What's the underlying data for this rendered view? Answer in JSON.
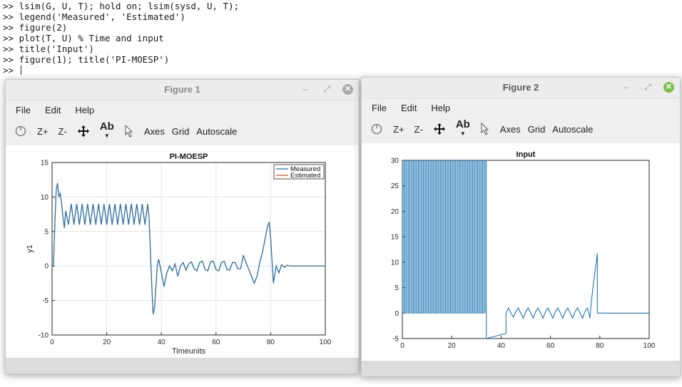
{
  "console": {
    "lines": [
      ">> lsim(G, U, T); hold on; lsim(sysd, U, T);",
      ">> legend('Measured', 'Estimated')",
      ">> figure(2)",
      ">> plot(T, U) % Time and input",
      ">> title('Input')",
      ">> figure(1); title('PI-MOESP')",
      ">> "
    ]
  },
  "figure1": {
    "window_title": "Figure 1",
    "menu": [
      "File",
      "Edit",
      "Help"
    ],
    "toolbar": {
      "zoom_in": "Z+",
      "zoom_out": "Z-",
      "text_tool": "Ab",
      "axes": "Axes",
      "grid": "Grid",
      "autoscale": "Autoscale"
    }
  },
  "figure2": {
    "window_title": "Figure 2",
    "menu": [
      "File",
      "Edit",
      "Help"
    ],
    "toolbar": {
      "zoom_in": "Z+",
      "zoom_out": "Z-",
      "text_tool": "Ab",
      "axes": "Axes",
      "grid": "Grid",
      "autoscale": "Autoscale"
    }
  },
  "chart_data": [
    {
      "type": "line",
      "title": "PI-MOESP",
      "xlabel": "Timeunits",
      "ylabel": "y1",
      "xlim": [
        0,
        100
      ],
      "ylim": [
        -10,
        15
      ],
      "xticks": [
        0,
        20,
        40,
        60,
        80,
        100
      ],
      "yticks": [
        -10,
        -5,
        0,
        5,
        10,
        15
      ],
      "grid": true,
      "legend_position": "top-right",
      "colors": {
        "Measured": "#1f77b4",
        "Estimated": "#d95319"
      },
      "series": [
        {
          "name": "Measured",
          "x": [
            0,
            0.5,
            1,
            1.5,
            2,
            2.5,
            3,
            3.5,
            4,
            4.5,
            5,
            6,
            7,
            8,
            9,
            10,
            11,
            12,
            13,
            14,
            15,
            16,
            17,
            18,
            19,
            20,
            21,
            22,
            23,
            24,
            25,
            26,
            27,
            28,
            29,
            30,
            31,
            32,
            33,
            34,
            35,
            35.5,
            36,
            36.5,
            37,
            37.5,
            38,
            38.5,
            39,
            40,
            41,
            42,
            43,
            44,
            45,
            46,
            47,
            48,
            49,
            50,
            51,
            52,
            53,
            54,
            55,
            56,
            57,
            58,
            59,
            60,
            61,
            62,
            63,
            64,
            65,
            66,
            67,
            68,
            69,
            70,
            71,
            72,
            73,
            74,
            75,
            76,
            77,
            78,
            79,
            79.5,
            80,
            81,
            82,
            83,
            84,
            85,
            86,
            87,
            88,
            90,
            95,
            100
          ],
          "y": [
            0,
            0,
            6,
            11,
            12,
            10,
            10.5,
            9,
            7,
            5.5,
            8,
            6,
            9,
            6,
            9,
            6,
            9,
            6,
            9,
            6,
            9,
            6,
            9,
            6,
            9,
            6,
            9,
            6,
            9,
            6,
            9,
            6,
            9,
            6,
            9,
            6,
            9,
            6,
            9,
            6,
            9,
            7,
            2,
            -3,
            -7,
            -6,
            -3,
            0,
            1,
            -1,
            -3,
            -1,
            0,
            -0.7,
            0.3,
            -1.5,
            0,
            0.5,
            -0.6,
            0.3,
            0.6,
            -0.4,
            -0.7,
            0.5,
            0.7,
            -0.5,
            -0.7,
            0.6,
            0.7,
            -0.5,
            -0.7,
            0.5,
            0.7,
            -0.5,
            -0.6,
            0.5,
            0.5,
            -0.4,
            -0.4,
            1.5,
            0.5,
            -0.5,
            -1.5,
            -2.5,
            -1.5,
            0.5,
            2,
            4,
            6,
            6.3,
            4,
            -2.5,
            0,
            -1,
            0.2,
            -0.2,
            0.1,
            0,
            0,
            0,
            0,
            0
          ]
        },
        {
          "name": "Estimated",
          "x": [
            0,
            0.5,
            1,
            1.5,
            2,
            2.5,
            3,
            3.5,
            4,
            4.5,
            5,
            6,
            7,
            8,
            9,
            10,
            11,
            12,
            13,
            14,
            15,
            16,
            17,
            18,
            19,
            20,
            21,
            22,
            23,
            24,
            25,
            26,
            27,
            28,
            29,
            30,
            31,
            32,
            33,
            34,
            35,
            35.5,
            36,
            36.5,
            37,
            37.5,
            38,
            38.5,
            39,
            40,
            41,
            42,
            43,
            44,
            45,
            46,
            47,
            48,
            49,
            50,
            51,
            52,
            53,
            54,
            55,
            56,
            57,
            58,
            59,
            60,
            61,
            62,
            63,
            64,
            65,
            66,
            67,
            68,
            69,
            70,
            71,
            72,
            73,
            74,
            75,
            76,
            77,
            78,
            79,
            79.5,
            80,
            81,
            82,
            83,
            84,
            85,
            86,
            87,
            88,
            90,
            95,
            100
          ],
          "y": [
            0,
            0,
            6,
            11,
            12,
            10,
            10.5,
            9,
            7,
            5.5,
            8,
            6,
            9,
            6,
            9,
            6,
            9,
            6,
            9,
            6,
            9,
            6,
            9,
            6,
            9,
            6,
            9,
            6,
            9,
            6,
            9,
            6,
            9,
            6,
            9,
            6,
            9,
            6,
            9,
            6,
            9,
            7,
            2,
            -3,
            -7,
            -6,
            -3,
            0,
            1,
            -1,
            -3,
            -1,
            0,
            -0.7,
            0.3,
            -1.5,
            0,
            0.5,
            -0.6,
            0.3,
            0.6,
            -0.4,
            -0.7,
            0.5,
            0.7,
            -0.5,
            -0.7,
            0.6,
            0.7,
            -0.5,
            -0.7,
            0.5,
            0.7,
            -0.5,
            -0.6,
            0.5,
            0.5,
            -0.4,
            -0.4,
            1.5,
            0.5,
            -0.5,
            -1.5,
            -2.5,
            -1.5,
            0.5,
            2,
            4,
            6,
            6.3,
            4,
            -2.5,
            0,
            -1,
            0.2,
            -0.2,
            0.1,
            0,
            0,
            0,
            0,
            0
          ]
        }
      ]
    },
    {
      "type": "line",
      "title": "Input",
      "xlabel": "",
      "ylabel": "",
      "xlim": [
        0,
        100
      ],
      "ylim": [
        -5,
        30
      ],
      "xticks": [
        0,
        20,
        40,
        60,
        80,
        100
      ],
      "yticks": [
        -5,
        0,
        5,
        10,
        15,
        20,
        25,
        30
      ],
      "grid": false,
      "colors": {
        "line": "#1f77b4"
      },
      "square_wave": {
        "from": 0,
        "to": 34,
        "period": 1.0,
        "high": 30,
        "low": 0
      },
      "series": [
        {
          "name": "",
          "x": [
            34,
            34,
            42,
            42,
            43,
            44,
            45,
            46,
            47,
            48,
            49,
            50,
            51,
            52,
            53,
            54,
            55,
            56,
            57,
            58,
            59,
            60,
            61,
            62,
            63,
            64,
            65,
            66,
            67,
            68,
            69,
            70,
            71,
            72,
            73,
            74,
            75,
            76,
            76.5,
            77,
            78,
            79,
            79,
            100
          ],
          "y": [
            30,
            -5,
            -4,
            0,
            1,
            0,
            -0.8,
            0.3,
            1,
            0,
            -1,
            0.3,
            1,
            0,
            -1,
            0.3,
            1,
            0,
            -1,
            0.3,
            1,
            0,
            -1,
            0.3,
            1,
            0,
            -1,
            0.3,
            1,
            0,
            -1,
            0.3,
            1,
            0,
            -1,
            0.3,
            1,
            -1,
            2,
            4,
            8,
            11.7,
            0,
            0
          ]
        }
      ]
    }
  ]
}
